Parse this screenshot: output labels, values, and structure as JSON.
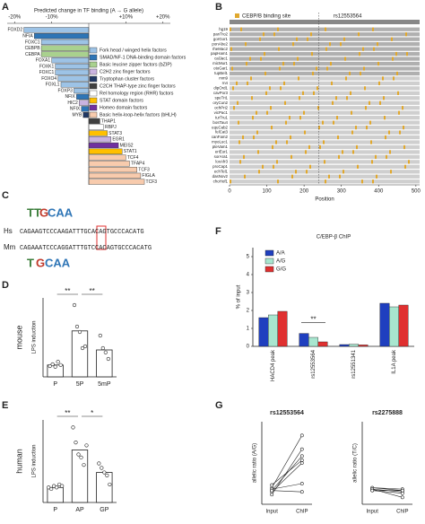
{
  "panel_labels": [
    "A",
    "B",
    "C",
    "D",
    "E",
    "F",
    "G"
  ],
  "chart_data": [
    {
      "type": "hbar",
      "title": "Predicted change in TF binding (A → G allele)",
      "categories": [
        "FOXD2",
        "NFIA",
        "FOXC1",
        "CEBPB",
        "CEBPA",
        "FOXA1",
        "FOXK1",
        "FOXC1",
        "FOXO4",
        "FOXL1",
        "FOXP3",
        "NFIX",
        "HIC2",
        "NFIX",
        "MYB",
        "THAP1",
        "RBPJ",
        "STAT3",
        "EGR1",
        "MEIS2",
        "STAT1",
        "TCF4",
        "TFAP4",
        "TCF3",
        "FIGLA",
        "TCF3"
      ],
      "values": [
        -17.5,
        -14.7,
        -12.8,
        -12.8,
        -12.8,
        -10,
        -9,
        -9,
        -8.3,
        -7.5,
        -4,
        -3.3,
        -2.6,
        -2,
        -1.5,
        3,
        4,
        5,
        6,
        8,
        9,
        10,
        11,
        13,
        14,
        15
      ],
      "colors": [
        "#9dc3e6",
        "#2e75b6",
        "#9dc3e6",
        "#a9d18e",
        "#a9d18e",
        "#9dc3e6",
        "#9dc3e6",
        "#9dc3e6",
        "#9dc3e6",
        "#9dc3e6",
        "#9dc3e6",
        "#2e75b6",
        "#c9b3e0",
        "#2e75b6",
        "#203864",
        "#404040",
        "#ffffff",
        "#ffc000",
        "#c9b3e0",
        "#7030a0",
        "#ffc000",
        "#f8cbad",
        "#f8cbad",
        "#f8cbad",
        "#f8cbad",
        "#f8cbad"
      ],
      "xlim": [
        -22,
        22
      ],
      "xticks": [
        {
          "value": -20,
          "label": "-20%"
        },
        {
          "value": -10,
          "label": "-10%"
        },
        {
          "value": 10,
          "label": "+10%"
        },
        {
          "value": 20,
          "label": "+20%"
        }
      ],
      "legend": [
        {
          "name": "Fork head / winged helix factors",
          "color": "#9dc3e6"
        },
        {
          "name": "SMAD/NF-1 DNA-binding domain factors",
          "color": "#2e75b6"
        },
        {
          "name": "Basic leucine zipper factors (bZIP)",
          "color": "#a9d18e"
        },
        {
          "name": "C2H2 zinc finger factors",
          "color": "#c9b3e0"
        },
        {
          "name": "Tryptophan cluster factors",
          "color": "#203864"
        },
        {
          "name": "C2CH THAP-type zinc finger factors",
          "color": "#404040"
        },
        {
          "name": "Rel homology region (RHR) factors",
          "color": "#ffffff"
        },
        {
          "name": "STAT domain factors",
          "color": "#ffc000"
        },
        {
          "name": "Homeo domain factors",
          "color": "#7030a0"
        },
        {
          "name": "Basic helix-loop-helix factors (bHLH)",
          "color": "#f8cbad"
        }
      ]
    },
    {
      "type": "dotbar",
      "ylabel": "LPS induction",
      "group_label": "mouse",
      "categories": [
        "P",
        "5P",
        "5mP"
      ],
      "values": [
        3.3,
        12.8,
        7.5
      ],
      "points": [
        [
          3.0,
          3.5,
          2.8,
          4.2,
          3.3
        ],
        [
          20,
          14,
          12.5,
          8,
          8.5
        ],
        [
          11.5,
          8,
          6.8,
          5
        ]
      ],
      "color": "#ffffff",
      "ylim": [
        0,
        22
      ],
      "significance": [
        "**",
        "**"
      ]
    },
    {
      "type": "dotbar",
      "ylabel": "LPS induction",
      "group_label": "human",
      "categories": [
        "P",
        "AP",
        "GP"
      ],
      "values": [
        1.0,
        3.5,
        2.0
      ],
      "points": [
        [
          1.0,
          0.9,
          1.1,
          1.0,
          1.2,
          1.1
        ],
        [
          5.0,
          4.0,
          3.2,
          3.0,
          2.5,
          3.8
        ],
        [
          2.6,
          2.3,
          2.0,
          1.8,
          1.2
        ]
      ],
      "color": "#ffffff",
      "ylim": [
        0,
        5.5
      ],
      "significance": [
        "**",
        "*"
      ]
    },
    {
      "type": "grouped_bar",
      "title": "C/EBP-β ChIP",
      "ylabel": "% of input",
      "categories": [
        "HACD4 peak",
        "rs12553564",
        "rs12551341",
        "IL1A peak"
      ],
      "series": [
        {
          "name": "A/A",
          "color": "#1f3fbf",
          "values": [
            1.6,
            0.72,
            0.1,
            2.4
          ]
        },
        {
          "name": "A/G",
          "color": "#a8e6cf",
          "values": [
            1.75,
            0.5,
            0.12,
            2.2
          ]
        },
        {
          "name": "G/G",
          "color": "#e03030",
          "values": [
            1.95,
            0.25,
            0.08,
            2.3
          ]
        }
      ],
      "ylim": [
        0,
        5.5
      ],
      "yticks": [
        0,
        1,
        2,
        3,
        4,
        5
      ],
      "significance": [
        "**"
      ]
    },
    {
      "type": "paired",
      "title": "rs12553564",
      "ylabel": "allelic ratio (A/G)",
      "categories": [
        "Input",
        "ChIP"
      ],
      "lines": [
        [
          1.2,
          5.0
        ],
        [
          0.7,
          4.0
        ],
        [
          1.0,
          3.5
        ],
        [
          1.4,
          3.2
        ],
        [
          0.9,
          3.0
        ],
        [
          1.1,
          1.5
        ],
        [
          1.0,
          0.9
        ]
      ],
      "ylim": [
        0,
        6
      ]
    },
    {
      "type": "paired",
      "title": "rs2275888",
      "ylabel": "allelic ratio (T/C)",
      "categories": [
        "Input",
        "ChIP"
      ],
      "lines": [
        [
          1.2,
          1.0
        ],
        [
          1.1,
          0.9
        ],
        [
          1.0,
          0.8
        ],
        [
          1.2,
          1.1
        ],
        [
          1.1,
          0.5
        ],
        [
          1.0,
          1.0
        ]
      ],
      "ylim": [
        0,
        6
      ]
    }
  ],
  "panel_b": {
    "legend": "CEBP/B binding site",
    "snp": "rs12553564",
    "snp_position": 240,
    "xlabel": "Position",
    "xlim": [
      0,
      510
    ],
    "xticks": [
      0,
      100,
      200,
      300,
      400,
      500
    ],
    "species": [
      "hg19",
      "panTro2",
      "gorGor1",
      "ponAbe2",
      "rheMac2",
      "papHam1",
      "calJac1",
      "micMur1",
      "otoGar1",
      "tupBel1",
      "mm9",
      "rn4",
      "dipOrd1",
      "cavPor3",
      "speTri1",
      "oryCun2",
      "ochPri2",
      "vicPac1",
      "turTru1",
      "bosTau4",
      "equCab2",
      "felCat3",
      "canFam2",
      "myoLuc1",
      "pteVam1",
      "eriEur1",
      "sorAra1",
      "loxAfr3",
      "proCap1",
      "echTel1",
      "dasNov2",
      "choHof1"
    ]
  },
  "panel_c": {
    "species": [
      "Hs",
      "Mm"
    ],
    "sequences": [
      "CAGAAGTCCCAAGATTTGCACAGTGCCCACATG",
      "CAGAAATCCCAGGATTTGTCCACAGTGCCCACATG"
    ]
  }
}
